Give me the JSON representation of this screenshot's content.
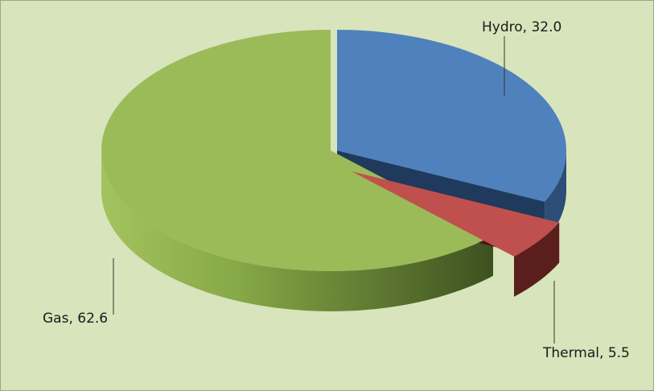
{
  "chart_data": {
    "type": "pie",
    "title": "",
    "slices": [
      {
        "name": "Hydro",
        "value": 32.0,
        "label": "Hydro, 32.0",
        "color": "#4f81bd",
        "side_color": "#2c4d75",
        "exploded": true
      },
      {
        "name": "Thermal",
        "value": 5.5,
        "label": "Thermal, 5.5",
        "color": "#c0504d",
        "side_color": "#5a1f1d",
        "exploded": true
      },
      {
        "name": "Gas",
        "value": 62.6,
        "label": "Gas, 62.6",
        "color": "#9bbb59",
        "side_color": "#6f8a38",
        "exploded": false
      }
    ],
    "start_angle_deg": -90,
    "direction": "clockwise",
    "view": "3d-perspective",
    "legend": "none",
    "background": "#d8e4bc"
  }
}
